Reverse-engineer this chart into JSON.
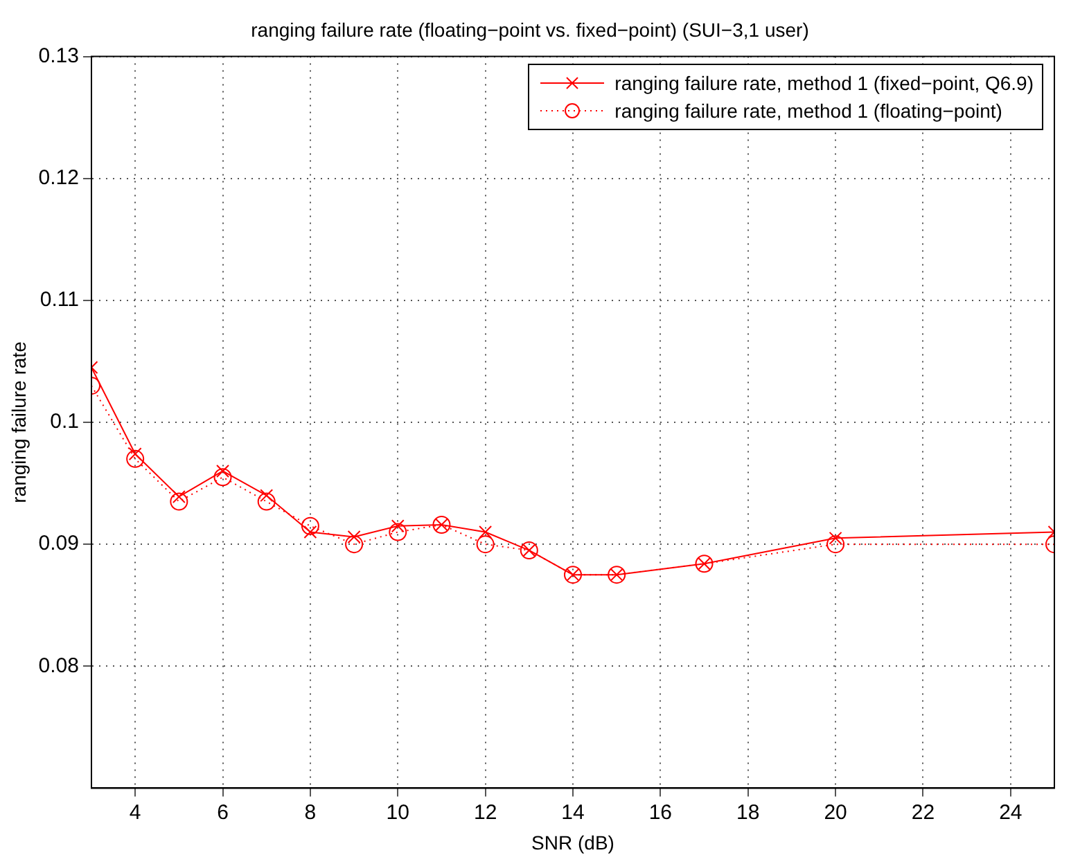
{
  "chart_data": {
    "type": "line",
    "title": "ranging failure rate (floating−point vs. fixed−point) (SUI−3,1 user)",
    "xlabel": "SNR (dB)",
    "ylabel": "ranging failure rate",
    "x": [
      3,
      4,
      5,
      6,
      7,
      8,
      9,
      10,
      11,
      12,
      13,
      14,
      15,
      17,
      20,
      25
    ],
    "series": [
      {
        "name": "ranging failure rate, method 1 (fixed−point, Q6.9)",
        "color": "#ff0000",
        "marker": "cross",
        "line_style": "solid",
        "values": [
          0.1045,
          0.0974,
          0.0939,
          0.096,
          0.094,
          0.091,
          0.0906,
          0.0915,
          0.0916,
          0.091,
          0.0895,
          0.0875,
          0.0875,
          0.0884,
          0.0905,
          0.091
        ]
      },
      {
        "name": "ranging failure rate, method 1 (floating−point)",
        "color": "#ff0000",
        "marker": "circle",
        "line_style": "dotted",
        "values": [
          0.103,
          0.097,
          0.0935,
          0.0955,
          0.0935,
          0.0915,
          0.09,
          0.091,
          0.0916,
          0.09,
          0.0895,
          0.0875,
          0.0875,
          0.0884,
          0.09,
          0.09
        ]
      }
    ],
    "xlim": [
      3,
      25
    ],
    "xticks": [
      4,
      6,
      8,
      10,
      12,
      14,
      16,
      18,
      20,
      22,
      24
    ],
    "ylim": [
      0.07,
      0.13
    ],
    "yticks": [
      0.08,
      0.09,
      0.1,
      0.11,
      0.12,
      0.13
    ],
    "grid": true,
    "legend": "top right"
  }
}
